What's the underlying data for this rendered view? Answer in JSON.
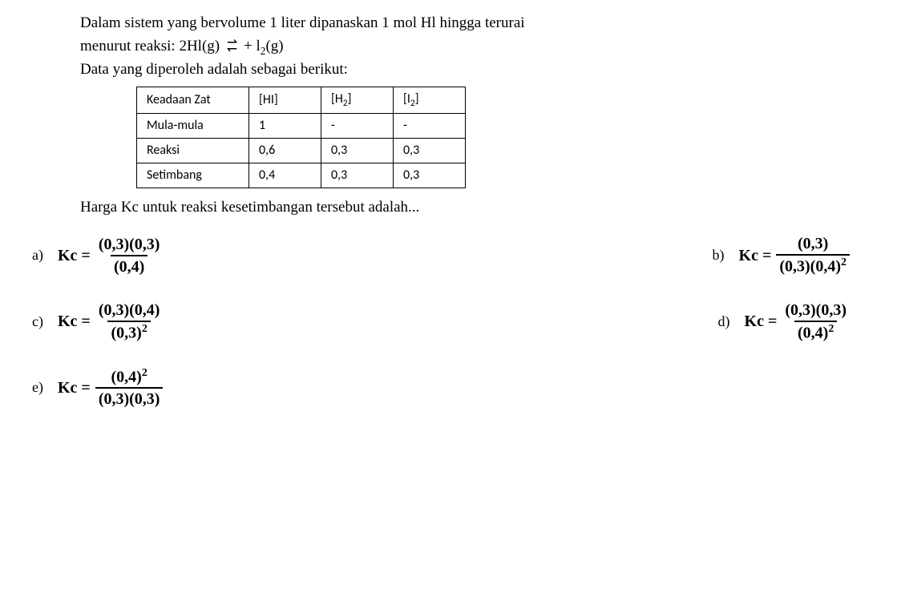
{
  "question": {
    "line1": "Dalam sistem yang bervolume 1 liter dipanaskan 1 mol Hl hingga terurai",
    "line2_pre": "menurut reaksi:  2Hl(g) ",
    "line2_post": " + l",
    "line2_end": "(g)",
    "line3": "Data yang diperoleh adalah sebagai berikut:"
  },
  "table": {
    "header": {
      "c1": "Keadaan Zat",
      "c2": "[HI]",
      "c3_pre": "[H",
      "c3_post": "]",
      "c4_pre": "[I",
      "c4_post": "]"
    },
    "rows": [
      {
        "c1": "Mula-mula",
        "c2": "1",
        "c3": "-",
        "c4": "-"
      },
      {
        "c1": "Reaksi",
        "c2": "0,6",
        "c3": "0,3",
        "c4": "0,3"
      },
      {
        "c1": "Setimbang",
        "c2": "0,4",
        "c3": "0,3",
        "c4": "0,3"
      }
    ]
  },
  "followup": "Harga Kc untuk reaksi kesetimbangan tersebut adalah...",
  "options": {
    "a": {
      "letter": "a)",
      "kc": "Kc =",
      "num": "(0,3)(0,3)",
      "den": "(0,4)"
    },
    "b": {
      "letter": "b)",
      "kc": "Kc =",
      "num": "(0,3)",
      "den_pre": "(0,3)(0,4)",
      "den_exp": "2"
    },
    "c": {
      "letter": "c)",
      "kc": "Kc =",
      "num": "(0,3)(0,4)",
      "den_pre": "(0,3)",
      "den_exp": "2"
    },
    "d": {
      "letter": "d)",
      "kc": "Kc =",
      "num": "(0,3)(0,3)",
      "den_pre": "(0,4)",
      "den_exp": "2"
    },
    "e": {
      "letter": "e)",
      "kc": "Kc =",
      "num_pre": "(0,4)",
      "num_exp": "2",
      "den": "(0,3)(0,3)"
    }
  },
  "subscript2": "2"
}
